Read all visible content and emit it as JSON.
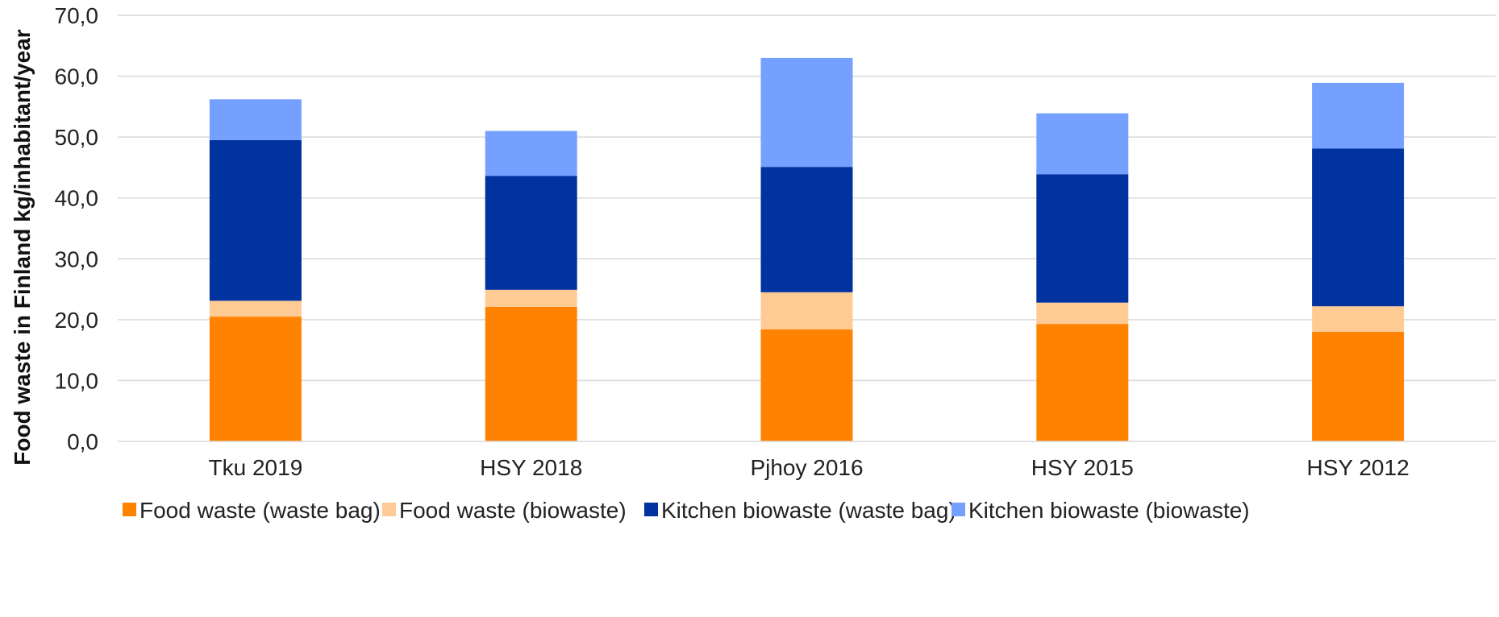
{
  "chart_data": {
    "type": "bar",
    "stacked": true,
    "title": "",
    "xlabel": "",
    "ylabel": "Food waste in Finland kg/inhabitant/year",
    "ylim": [
      0,
      70
    ],
    "yticks": [
      0,
      10,
      20,
      30,
      40,
      50,
      60,
      70
    ],
    "ytick_labels": [
      "0,0",
      "10,0",
      "20,0",
      "30,0",
      "40,0",
      "50,0",
      "60,0",
      "70,0"
    ],
    "grid": true,
    "legend_position": "bottom",
    "categories": [
      "Tku 2019",
      "HSY 2018",
      "Pjhoy 2016",
      "HSY 2015",
      "HSY 2012"
    ],
    "series": [
      {
        "name": "Food waste (waste bag)",
        "color": "#ff8300",
        "values": [
          20.5,
          22.1,
          18.4,
          19.3,
          18.0
        ]
      },
      {
        "name": "Food waste (biowaste)",
        "color": "#ffcb94",
        "values": [
          2.6,
          2.8,
          6.1,
          3.5,
          4.2
        ]
      },
      {
        "name": "Kitchen biowaste (waste bag)",
        "color": "#0033a0",
        "values": [
          26.4,
          18.7,
          20.6,
          21.1,
          25.9
        ]
      },
      {
        "name": "Kitchen biowaste (biowaste)",
        "color": "#76a0ff",
        "values": [
          6.7,
          7.4,
          17.9,
          10.0,
          10.8
        ]
      }
    ]
  }
}
